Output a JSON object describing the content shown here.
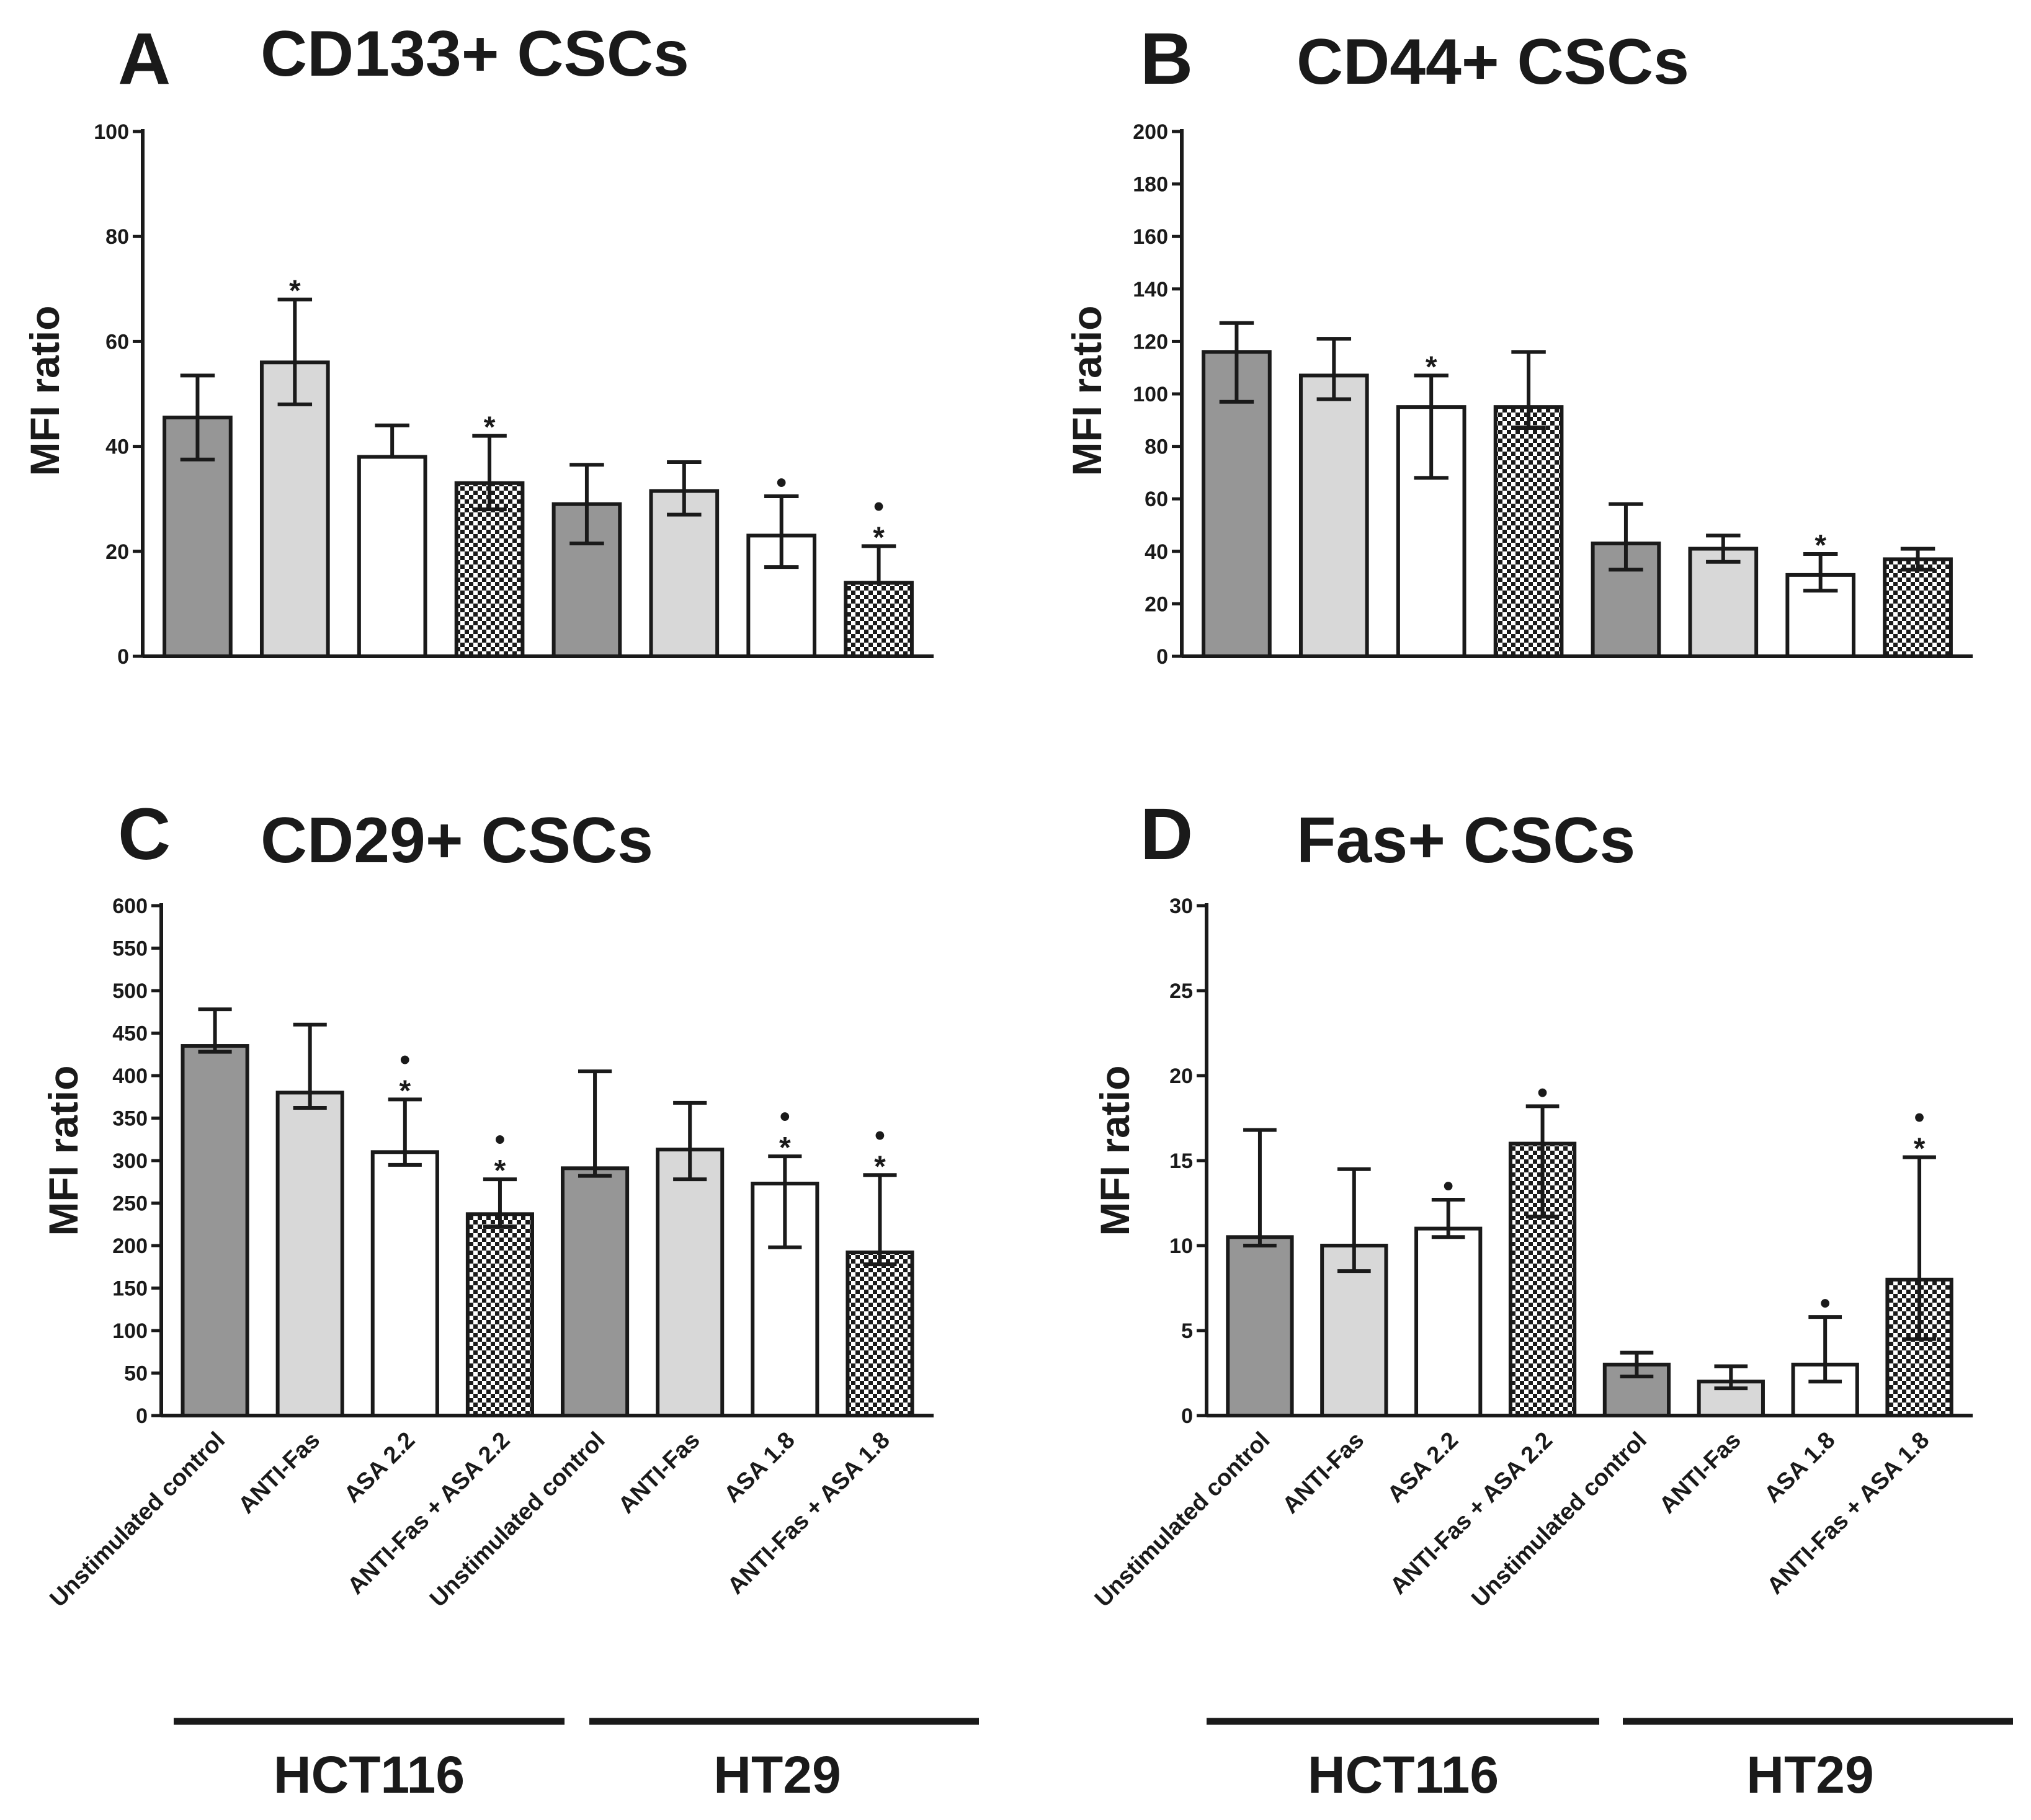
{
  "colors": {
    "unstimulated": "#969696",
    "anti_fas": "#d8d8d8",
    "asa": "#ffffff",
    "combo_pattern": "checker",
    "ink": "#1a1a1a"
  },
  "groups": [
    "HCT116",
    "HT29"
  ],
  "chart_data": [
    {
      "panel": "A",
      "type": "bar",
      "title": "CD133+ CSCs",
      "xlabel": "",
      "ylabel": "MFI ratio",
      "ylim": [
        0,
        100
      ],
      "ytick_step": 20,
      "yticks": [
        "0",
        "20",
        "40",
        "60",
        "80",
        "100"
      ],
      "categories": [
        "Unstimulated control",
        "ANTI-Fas",
        "ASA 2.2",
        "ANTI-Fas + ASA 2.2",
        "Unstimulated control",
        "ANTI-Fas",
        "ASA 1.8",
        "ANTI-Fas + ASA 1.8"
      ],
      "fills": [
        "unstimulated",
        "anti_fas",
        "asa",
        "combo",
        "unstimulated",
        "anti_fas",
        "asa",
        "combo"
      ],
      "values": [
        45.5,
        56,
        38,
        33,
        29,
        31.5,
        23,
        14
      ],
      "err_upper": [
        53.5,
        68,
        44,
        42,
        36.5,
        37,
        30.5,
        21
      ],
      "err_lower": [
        37.5,
        48,
        38,
        28,
        21.5,
        27,
        17,
        14
      ],
      "star": [
        false,
        true,
        false,
        true,
        false,
        false,
        false,
        true
      ],
      "dot": [
        false,
        false,
        false,
        false,
        false,
        false,
        true,
        true
      ],
      "star_symbol": "*",
      "dot_symbol": "•"
    },
    {
      "panel": "B",
      "type": "bar",
      "title": "CD44+ CSCs",
      "xlabel": "",
      "ylabel": "MFI ratio",
      "ylim": [
        0,
        200
      ],
      "ytick_step": 20,
      "yticks": [
        "0",
        "20",
        "40",
        "60",
        "80",
        "100",
        "120",
        "140",
        "160",
        "180",
        "200"
      ],
      "categories": [
        "Unstimulated control",
        "ANTI-Fas",
        "ASA 2.2",
        "ANTI-Fas + ASA 2.2",
        "Unstimulated control",
        "ANTI-Fas",
        "ASA 1.8",
        "ANTI-Fas + ASA 1.8"
      ],
      "fills": [
        "unstimulated",
        "anti_fas",
        "asa",
        "combo",
        "unstimulated",
        "anti_fas",
        "asa",
        "combo"
      ],
      "values": [
        116,
        107,
        95,
        95,
        43,
        41,
        31,
        37
      ],
      "err_upper": [
        127,
        121,
        107,
        116,
        58,
        46,
        39,
        41
      ],
      "err_lower": [
        97,
        98,
        68,
        87,
        33,
        36,
        25,
        33
      ],
      "star": [
        false,
        false,
        true,
        false,
        false,
        false,
        true,
        false
      ],
      "dot": [
        false,
        false,
        false,
        false,
        false,
        false,
        false,
        false
      ],
      "star_symbol": "*",
      "dot_symbol": "•"
    },
    {
      "panel": "C",
      "type": "bar",
      "title": "CD29+ CSCs",
      "xlabel": "",
      "ylabel": "MFI ratio",
      "ylim": [
        0,
        600
      ],
      "ytick_step": 50,
      "yticks": [
        "0",
        "50",
        "100",
        "150",
        "200",
        "250",
        "300",
        "350",
        "400",
        "450",
        "500",
        "550",
        "600"
      ],
      "categories": [
        "Unstimulated control",
        "ANTI-Fas",
        "ASA 2.2",
        "ANTI-Fas + ASA 2.2",
        "Unstimulated control",
        "ANTI-Fas",
        "ASA 1.8",
        "ANTI-Fas + ASA 1.8"
      ],
      "fills": [
        "unstimulated",
        "anti_fas",
        "asa",
        "combo",
        "unstimulated",
        "anti_fas",
        "asa",
        "combo"
      ],
      "values": [
        435,
        380,
        310,
        237,
        291,
        313,
        273,
        192
      ],
      "err_upper": [
        478,
        460,
        372,
        278,
        405,
        368,
        305,
        283
      ],
      "err_lower": [
        428,
        362,
        295,
        222,
        282,
        278,
        198,
        178
      ],
      "star": [
        false,
        false,
        true,
        true,
        false,
        false,
        true,
        true
      ],
      "dot": [
        false,
        false,
        true,
        true,
        false,
        false,
        true,
        true
      ],
      "star_symbol": "*",
      "dot_symbol": "•"
    },
    {
      "panel": "D",
      "type": "bar",
      "title": "Fas+ CSCs",
      "xlabel": "",
      "ylabel": "MFI ratio",
      "ylim": [
        0,
        30
      ],
      "ytick_step": 5,
      "yticks": [
        "0",
        "5",
        "10",
        "15",
        "20",
        "25",
        "30"
      ],
      "categories": [
        "Unstimulated control",
        "ANTI-Fas",
        "ASA 2.2",
        "ANTI-Fas + ASA 2.2",
        "Unstimulated control",
        "ANTI-Fas",
        "ASA 1.8",
        "ANTI-Fas + ASA 1.8"
      ],
      "fills": [
        "unstimulated",
        "anti_fas",
        "asa",
        "combo",
        "unstimulated",
        "anti_fas",
        "asa",
        "combo"
      ],
      "values": [
        10.5,
        10,
        11,
        16,
        3,
        2,
        3,
        8
      ],
      "err_upper": [
        16.8,
        14.5,
        12.7,
        18.2,
        3.7,
        2.9,
        5.8,
        15.2
      ],
      "err_lower": [
        10,
        8.5,
        10.5,
        11.7,
        2.3,
        1.6,
        2,
        4.5
      ],
      "star": [
        false,
        false,
        false,
        false,
        false,
        false,
        false,
        true
      ],
      "dot": [
        false,
        false,
        true,
        true,
        false,
        false,
        true,
        true
      ],
      "star_symbol": "*",
      "dot_symbol": "•"
    }
  ]
}
